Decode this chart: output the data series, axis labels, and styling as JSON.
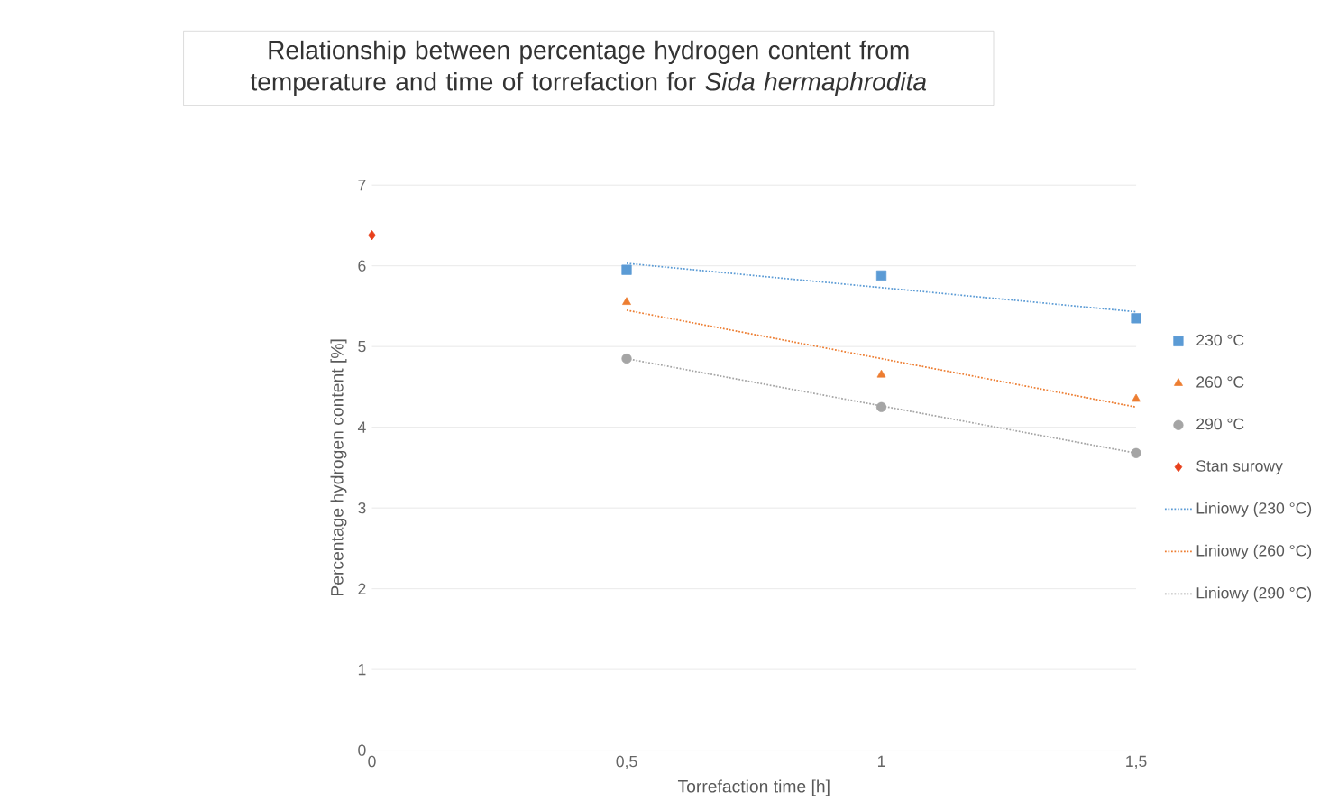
{
  "chart_data": {
    "type": "scatter",
    "title": "Relationship between percentage hydrogen content from temperature and time of torrefaction for *Sida hermaphrodita*",
    "xlabel": "Torrefaction time [h]",
    "ylabel": "Percentage hydrogen content [%]",
    "xlim": [
      0,
      1.5
    ],
    "xticks": [
      0,
      {
        "value": 0.5,
        "label": "0,5"
      },
      1,
      {
        "value": 1.5,
        "label": "1,5"
      }
    ],
    "ylim": [
      0,
      7
    ],
    "yticks": [
      0,
      1,
      2,
      3,
      4,
      5,
      6,
      7
    ],
    "grid": "y",
    "legend": "right",
    "series": [
      {
        "name": "230 °C",
        "color": "#5b9bd5",
        "marker": "square",
        "x": [
          0.5,
          1,
          1.5
        ],
        "values": [
          5.95,
          5.88,
          5.35
        ]
      },
      {
        "name": "260 °C",
        "color": "#ed7d31",
        "marker": "triangle",
        "x": [
          0.5,
          1,
          1.5
        ],
        "values": [
          5.55,
          4.65,
          4.35
        ]
      },
      {
        "name": "290 °C",
        "color": "#a5a5a5",
        "marker": "circle",
        "x": [
          0.5,
          1,
          1.5
        ],
        "values": [
          4.85,
          4.25,
          3.68
        ]
      },
      {
        "name": "Stan surowy",
        "color": "#e8401c",
        "marker": "diamond",
        "x": [
          0
        ],
        "values": [
          6.38
        ]
      },
      {
        "name": "Liniowy (230 °C)",
        "type": "line",
        "color": "#5b9bd5",
        "line_style": "dotted",
        "x": [
          0.5,
          1.5
        ],
        "values": [
          6.03,
          5.43
        ]
      },
      {
        "name": "Liniowy (260 °C)",
        "type": "line",
        "color": "#ed7d31",
        "line_style": "dotted",
        "x": [
          0.5,
          1.5
        ],
        "values": [
          5.45,
          4.25
        ]
      },
      {
        "name": "Liniowy (290 °C)",
        "type": "line",
        "color": "#a5a5a5",
        "line_style": "dotted",
        "x": [
          0.5,
          1.5
        ],
        "values": [
          4.85,
          3.68
        ]
      }
    ]
  }
}
